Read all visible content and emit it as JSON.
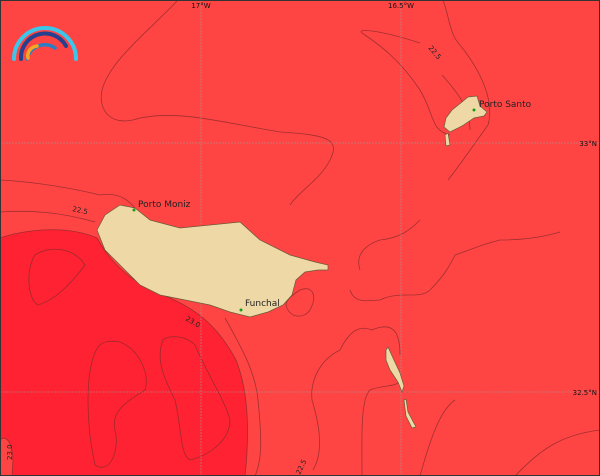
{
  "map": {
    "colors": {
      "sea_warm": "#ff4444",
      "sea_warmer": "#ff2233",
      "land": "#eed9a6",
      "place_marker": "#1a9a1a"
    },
    "grid_labels": {
      "lon": [
        "17°W",
        "16.5°W"
      ],
      "lat": [
        "33°N",
        "32.5°N"
      ]
    },
    "places": [
      {
        "name": "Porto Santo"
      },
      {
        "name": "Porto Moniz"
      },
      {
        "name": "Funchal"
      }
    ],
    "contour_labels": [
      "22.5",
      "22.5",
      "23.0",
      "23.0",
      "22.5"
    ],
    "logo_icon": "rainbow-arcs-logo"
  }
}
